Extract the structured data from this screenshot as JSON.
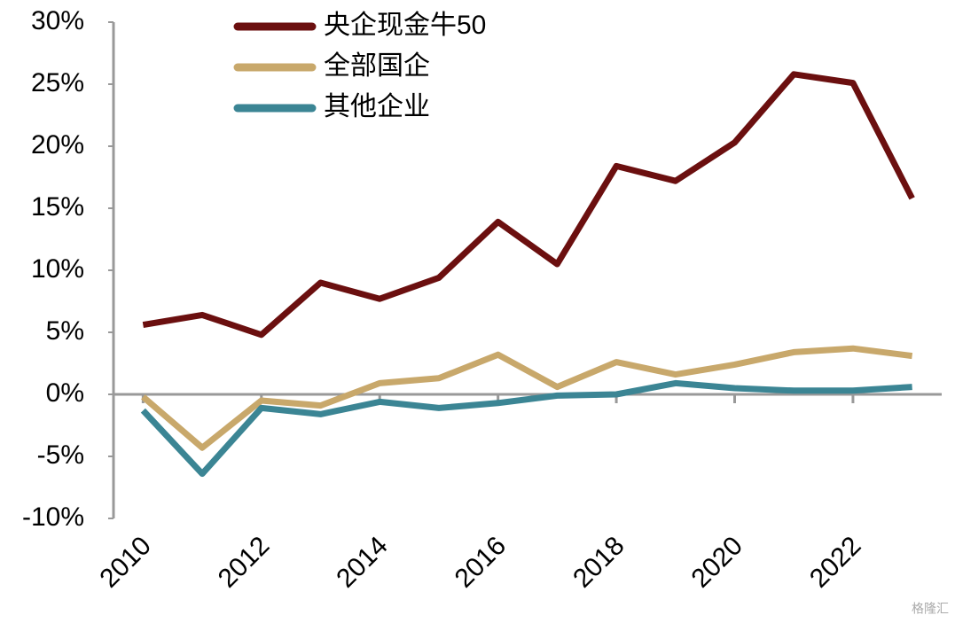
{
  "chart_data": {
    "type": "line",
    "x": [
      2010,
      2011,
      2012,
      2013,
      2014,
      2015,
      2016,
      2017,
      2018,
      2019,
      2020,
      2021,
      2022,
      2023
    ],
    "xlim": [
      2009.5,
      2023.5
    ],
    "xticks": [
      2010,
      2012,
      2014,
      2016,
      2018,
      2020,
      2022
    ],
    "ylim": [
      -10,
      30
    ],
    "yticks": [
      {
        "value": -10,
        "label": "-10%"
      },
      {
        "value": -5,
        "label": "-5%"
      },
      {
        "value": 0,
        "label": "0%"
      },
      {
        "value": 5,
        "label": "5%"
      },
      {
        "value": 10,
        "label": "10%"
      },
      {
        "value": 15,
        "label": "15%"
      },
      {
        "value": 20,
        "label": "20%"
      },
      {
        "value": 25,
        "label": "25%"
      },
      {
        "value": 30,
        "label": "30%"
      }
    ],
    "legend": "top-left",
    "series": [
      {
        "name": "央企现金牛50",
        "color": "#6b0f0f",
        "values": [
          5.6,
          6.4,
          4.8,
          9.0,
          7.7,
          9.4,
          13.9,
          10.5,
          18.4,
          17.2,
          20.3,
          25.8,
          25.1,
          15.8
        ]
      },
      {
        "name": "全部国企",
        "color": "#c8a86b",
        "values": [
          -0.2,
          -4.3,
          -0.5,
          -0.9,
          0.9,
          1.3,
          3.2,
          0.6,
          2.6,
          1.6,
          2.4,
          3.4,
          3.7,
          3.1
        ]
      },
      {
        "name": "其他企业",
        "color": "#3b8594",
        "values": [
          -1.3,
          -6.4,
          -1.1,
          -1.6,
          -0.6,
          -1.1,
          -0.7,
          -0.1,
          0.0,
          0.9,
          0.5,
          0.3,
          0.3,
          0.6
        ]
      }
    ]
  },
  "watermark": "格隆汇"
}
